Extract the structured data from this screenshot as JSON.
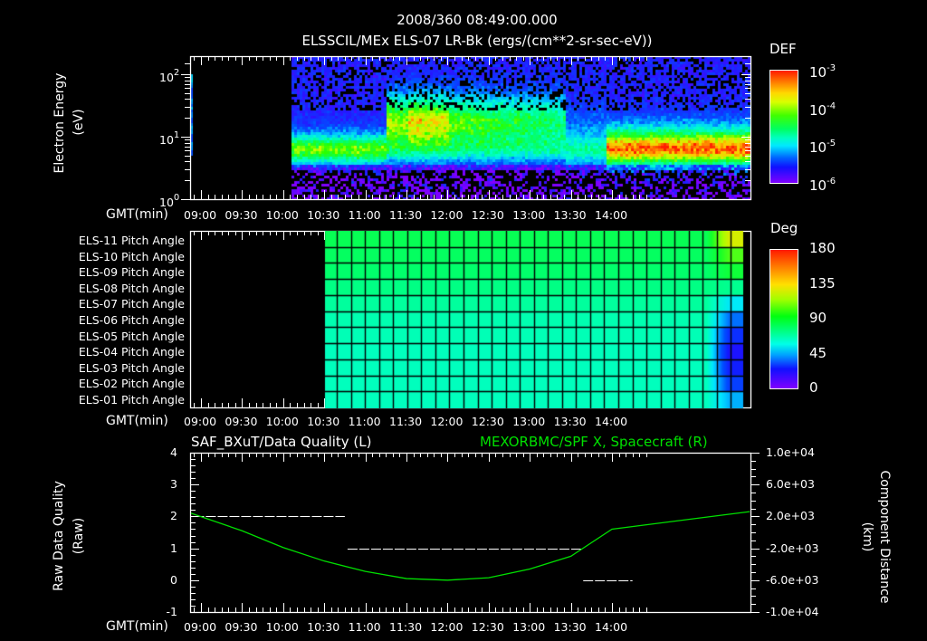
{
  "header": {
    "datetime": "2008/360 08:49:00.000",
    "subtitle": "ELSSCIL/MEx ELS-07 LR-Bk  (ergs/(cm**2-sr-sec-eV))"
  },
  "time_axis": {
    "label": "GMT(min)",
    "ticks": [
      "09:00",
      "09:30",
      "10:00",
      "10:30",
      "11:00",
      "11:30",
      "12:00",
      "12:30",
      "13:00",
      "13:30",
      "14:00"
    ]
  },
  "panels": {
    "spectrogram": {
      "ylabel_line1": "Electron Energy",
      "ylabel_line2": "(eV)",
      "y_ticks": [
        {
          "base": "10",
          "exp": "2"
        },
        {
          "base": "10",
          "exp": "1"
        },
        {
          "base": "10",
          "exp": "0"
        }
      ],
      "colorbar": {
        "title": "DEF",
        "ticks": [
          {
            "base": "10",
            "exp": "-3"
          },
          {
            "base": "10",
            "exp": "-4"
          },
          {
            "base": "10",
            "exp": "-5"
          },
          {
            "base": "10",
            "exp": "-6"
          }
        ]
      }
    },
    "pitch_angle": {
      "row_labels": [
        "ELS-11 Pitch Angle",
        "ELS-10 Pitch Angle",
        "ELS-09 Pitch Angle",
        "ELS-08 Pitch Angle",
        "ELS-07 Pitch Angle",
        "ELS-06 Pitch Angle",
        "ELS-05 Pitch Angle",
        "ELS-04 Pitch Angle",
        "ELS-03 Pitch Angle",
        "ELS-02 Pitch Angle",
        "ELS-01 Pitch Angle"
      ],
      "colorbar": {
        "title": "Deg",
        "ticks": [
          "180",
          "135",
          "90",
          "45",
          "0"
        ]
      }
    },
    "line_plot": {
      "title_left": "SAF_BXuT/Data Quality (L)",
      "title_right": "MEXORBMC/SPF X, Spacecraft (R)",
      "title_right_color": "#00e000",
      "ylabel_left_line1": "Raw Data Quality",
      "ylabel_left_line2": "(Raw)",
      "ylabel_right_line1": "Component Distance",
      "ylabel_right_line2": "(km)",
      "left_ticks": [
        "4",
        "3",
        "2",
        "1",
        "0",
        "-1"
      ],
      "right_ticks": [
        "1.0e+04",
        "6.0e+03",
        "2.0e+03",
        "-2.0e+03",
        "-6.0e+03",
        "-1.0e+04"
      ]
    }
  },
  "chart_data": [
    {
      "type": "heatmap",
      "title": "ELSSCIL/MEx ELS-07 LR-Bk (ergs/(cm**2-sr-sec-eV))",
      "xlabel": "GMT(min)",
      "ylabel": "Electron Energy (eV)",
      "yscale": "log",
      "ylim": [
        1,
        150
      ],
      "x_ticks": [
        "09:00",
        "09:30",
        "10:00",
        "10:30",
        "11:00",
        "11:30",
        "12:00",
        "12:30",
        "13:00",
        "13:30",
        "14:00"
      ],
      "colorbar": {
        "label": "DEF",
        "scale": "log",
        "range": [
          1e-06,
          0.001
        ]
      },
      "data_start": "10:06",
      "features": [
        {
          "time_range": [
            "10:06",
            "11:15"
          ],
          "energy_peak_eV": 7,
          "level": 1e-05
        },
        {
          "time_range": [
            "11:15",
            "13:25"
          ],
          "energy_peak_eV": 20,
          "level": 0.0001
        },
        {
          "time_range": [
            "13:25",
            "13:55"
          ],
          "energy_peak_eV": 10,
          "level": 5e-06
        },
        {
          "time_range": [
            "13:55",
            "14:18"
          ],
          "energy_peak_eV": 6,
          "level": 8e-05
        }
      ]
    },
    {
      "type": "heatmap",
      "title": "ELS Pitch Angle",
      "xlabel": "GMT(min)",
      "rows": [
        "ELS-11",
        "ELS-10",
        "ELS-09",
        "ELS-08",
        "ELS-07",
        "ELS-06",
        "ELS-05",
        "ELS-04",
        "ELS-03",
        "ELS-02",
        "ELS-01"
      ],
      "colorbar": {
        "label": "Deg",
        "range": [
          0,
          180
        ]
      },
      "data_start": "10:06",
      "typical_values_deg": [
        100,
        98,
        96,
        92,
        88,
        85,
        84,
        83,
        83,
        83,
        83
      ],
      "late_values_deg_14_10": [
        135,
        115,
        105,
        90,
        70,
        50,
        35,
        25,
        30,
        40,
        60
      ]
    },
    {
      "type": "line",
      "title_left": "SAF_BXuT/Data Quality (L)",
      "title_right": "MEXORBMC/SPF X, Spacecraft (R)",
      "xlabel": "GMT(min)",
      "ylabel_left": "Raw Data Quality (Raw)",
      "ylabel_right": "Component Distance (km)",
      "ylim_left": [
        -1,
        4
      ],
      "ylim_right": [
        -10000,
        10000
      ],
      "series": [
        {
          "name": "Data Quality",
          "axis": "left",
          "style": "dashed",
          "color": "#ffffff",
          "segments": [
            {
              "x": [
                "08:55",
                "10:45"
              ],
              "y": 2
            },
            {
              "x": [
                "10:47",
                "13:38"
              ],
              "y": 1
            },
            {
              "x": [
                "13:39",
                "14:15"
              ],
              "y": 0
            }
          ]
        },
        {
          "name": "SPF X",
          "axis": "right",
          "color": "#00e000",
          "x": [
            "08:49",
            "09:30",
            "10:00",
            "10:30",
            "11:00",
            "11:30",
            "12:00",
            "12:30",
            "13:00",
            "13:30",
            "14:00",
            "14:19"
          ],
          "y": [
            2400,
            200,
            -1900,
            -3600,
            -4900,
            -5800,
            -6000,
            -5700,
            -4600,
            -3000,
            400,
            2600
          ]
        }
      ]
    }
  ]
}
